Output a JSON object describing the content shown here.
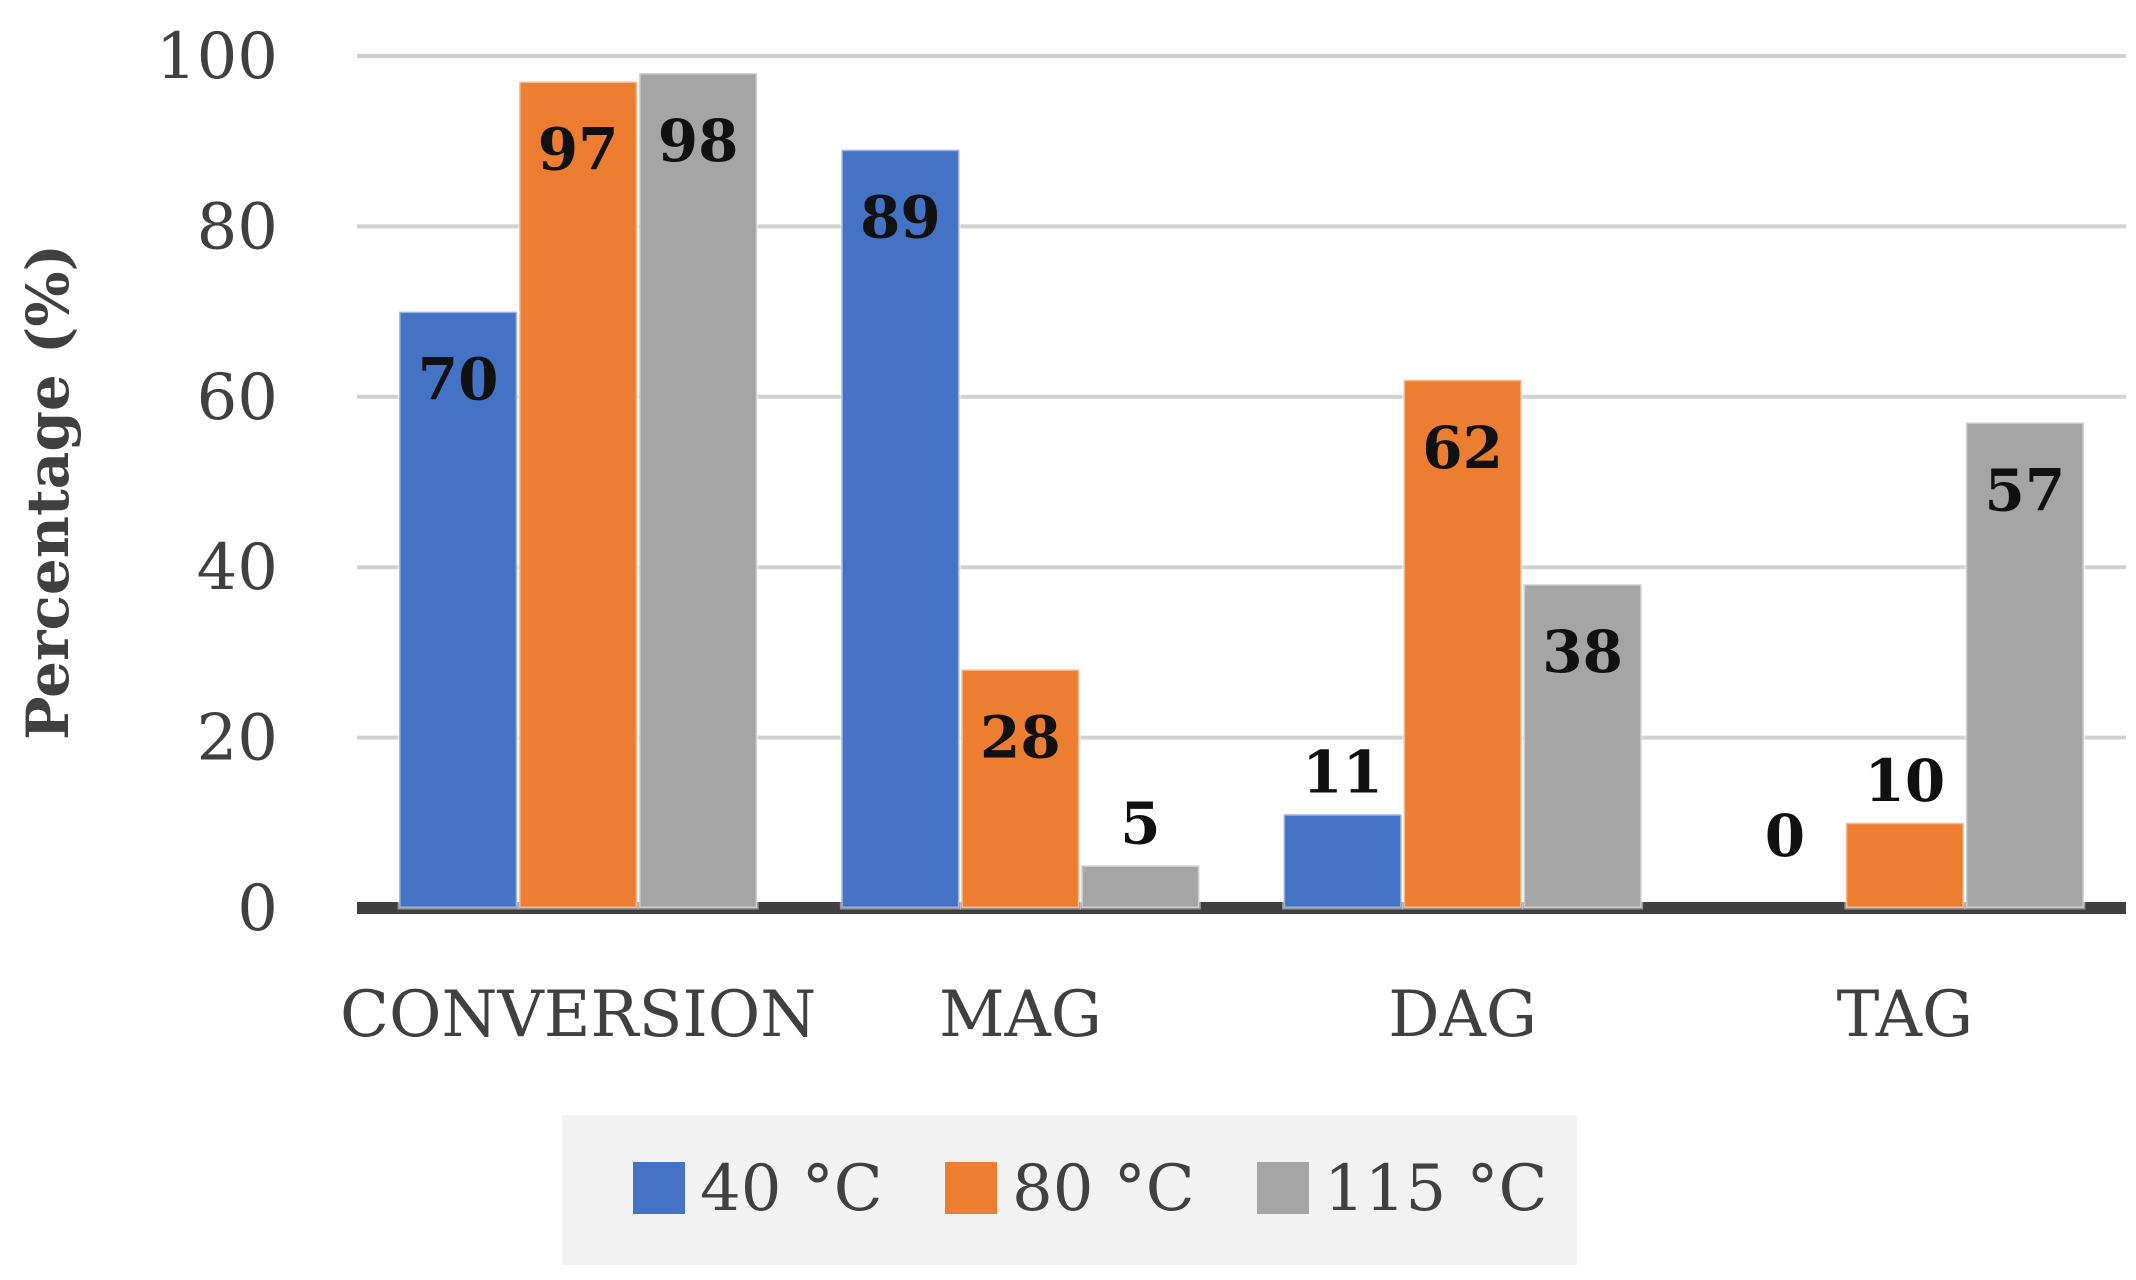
{
  "chart_data": {
    "type": "bar",
    "categories": [
      "CONVERSION",
      "MAG",
      "DAG",
      "TAG"
    ],
    "series": [
      {
        "name": "40 °C",
        "color": "#4472C4",
        "values": [
          70,
          89,
          11,
          0
        ]
      },
      {
        "name": "80 °C",
        "color": "#ED7D31",
        "values": [
          97,
          28,
          62,
          10
        ]
      },
      {
        "name": "115 °C",
        "color": "#A5A5A5",
        "values": [
          98,
          5,
          38,
          57
        ]
      }
    ],
    "title": "",
    "xlabel": "",
    "ylabel": "Percentage (%)",
    "ylim": [
      0,
      100
    ],
    "yticks": [
      0,
      20,
      40,
      60,
      80,
      100
    ],
    "grid": true,
    "legend": "bottom"
  }
}
